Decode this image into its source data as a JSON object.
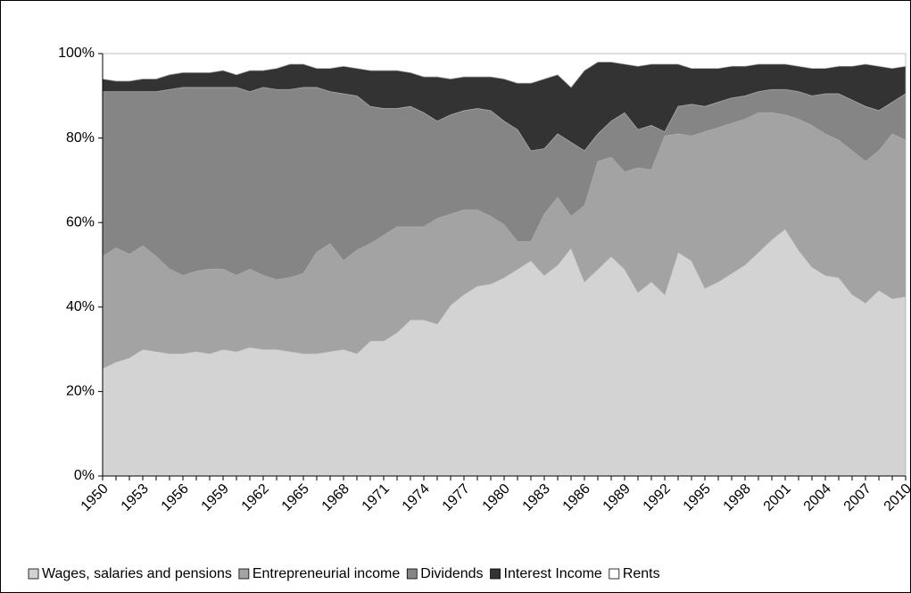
{
  "chart_data": {
    "type": "stacked_area",
    "x": [
      1950,
      1951,
      1952,
      1953,
      1954,
      1955,
      1956,
      1957,
      1958,
      1959,
      1960,
      1961,
      1962,
      1963,
      1964,
      1965,
      1966,
      1967,
      1968,
      1969,
      1970,
      1971,
      1972,
      1973,
      1974,
      1975,
      1976,
      1977,
      1978,
      1979,
      1980,
      1981,
      1982,
      1983,
      1984,
      1985,
      1986,
      1987,
      1988,
      1989,
      1990,
      1991,
      1992,
      1993,
      1994,
      1995,
      1996,
      1997,
      1998,
      1999,
      2000,
      2001,
      2002,
      2003,
      2004,
      2005,
      2006,
      2007,
      2008,
      2009,
      2010
    ],
    "xlim": [
      1950,
      2010
    ],
    "xticks": [
      1950,
      1953,
      1956,
      1959,
      1962,
      1965,
      1968,
      1971,
      1974,
      1977,
      1980,
      1983,
      1986,
      1989,
      1992,
      1995,
      1998,
      2001,
      2004,
      2007,
      2010
    ],
    "ylim": [
      0,
      100
    ],
    "yticks": [
      {
        "value": 0,
        "label": "0%"
      },
      {
        "value": 20,
        "label": "20%"
      },
      {
        "value": 40,
        "label": "40%"
      },
      {
        "value": 60,
        "label": "60%"
      },
      {
        "value": 80,
        "label": "80%"
      },
      {
        "value": 100,
        "label": "100%"
      }
    ],
    "grid": false,
    "legend": "bottom",
    "series": [
      {
        "name": "Wages, salaries and pensions",
        "color": "#d3d3d3",
        "values": [
          25.5,
          27,
          28,
          30,
          29.5,
          29,
          29,
          29.5,
          29,
          30,
          29.5,
          30.5,
          30,
          30,
          29.5,
          29,
          29,
          29.5,
          30,
          29,
          32,
          32,
          34,
          37,
          37,
          36,
          40.5,
          43,
          45,
          45.5,
          47,
          49,
          51,
          47.5,
          50,
          54,
          46,
          49,
          52,
          49,
          43.5,
          46,
          43,
          53,
          51,
          44.5,
          46,
          48,
          50,
          53,
          56,
          58.5,
          53.5,
          49.5,
          47.5,
          47,
          43,
          41,
          44,
          42,
          42.5
        ]
      },
      {
        "name": "Entrepreneurial income",
        "color": "#a3a3a3",
        "values": [
          26.5,
          27,
          24.5,
          24.5,
          22.5,
          20,
          18.5,
          19,
          20,
          19,
          18,
          18.5,
          17.5,
          16.5,
          17.5,
          19,
          24,
          25.5,
          21,
          24.5,
          23,
          25,
          25,
          22,
          22,
          25,
          21.5,
          20,
          18,
          16,
          12.5,
          6.5,
          4.5,
          14.5,
          16,
          7.5,
          18,
          25.5,
          23.5,
          23,
          29.5,
          26.5,
          37.5,
          28,
          29.5,
          37,
          36.5,
          35.5,
          34.5,
          33,
          30,
          27,
          31,
          33.5,
          33.5,
          32.5,
          34,
          33.5,
          33,
          39,
          37
        ]
      },
      {
        "name": "Dividends",
        "color": "#858585",
        "values": [
          39,
          37,
          38.5,
          36.5,
          39,
          42.5,
          44.5,
          43.5,
          43,
          43,
          44.5,
          42,
          44.5,
          45,
          44.5,
          44,
          39,
          36,
          39.5,
          36.5,
          32.5,
          30,
          28,
          28.5,
          27,
          23,
          23.5,
          23.5,
          24,
          25,
          24.5,
          26.5,
          21.5,
          15.5,
          15,
          17.5,
          13,
          6.5,
          8.5,
          14,
          9,
          10.5,
          1,
          6.5,
          7.5,
          6,
          6,
          6,
          5.5,
          5,
          5.5,
          6,
          6.5,
          7,
          9.5,
          11,
          12,
          13,
          9.5,
          7.5,
          11
        ]
      },
      {
        "name": "Interest Income",
        "color": "#333333",
        "values": [
          3,
          2.5,
          2.5,
          3,
          3,
          3.5,
          3.5,
          3.5,
          3.5,
          4,
          3,
          5,
          4,
          5,
          6,
          5.5,
          4.5,
          5.5,
          6.5,
          6.5,
          8.5,
          9,
          9,
          8,
          8.5,
          10.5,
          8.5,
          8,
          7.5,
          8,
          10,
          11,
          16,
          16.5,
          14,
          13,
          19,
          17,
          14,
          11.5,
          15,
          14.5,
          16,
          10,
          8.5,
          9,
          8,
          7.5,
          7,
          6.5,
          6,
          6,
          6,
          6.5,
          6,
          6.5,
          8,
          10,
          10.5,
          8,
          6.5
        ]
      },
      {
        "name": "Rents",
        "color": "#ffffff",
        "values": [
          6,
          6.5,
          6.5,
          6,
          6,
          5,
          4.5,
          4.5,
          4.5,
          4,
          5,
          4,
          4,
          3.5,
          2.5,
          2.5,
          3.5,
          3.5,
          3,
          3.5,
          4,
          4,
          4,
          4.5,
          5.5,
          5.5,
          6,
          5.5,
          5.5,
          5.5,
          6,
          7,
          7,
          6,
          5,
          8,
          4,
          2,
          2,
          2.5,
          3,
          2.5,
          2.5,
          2.5,
          3.5,
          3.5,
          3.5,
          3,
          3,
          2.5,
          2.5,
          2.5,
          3,
          3.5,
          3.5,
          3,
          3,
          2.5,
          3,
          3.5,
          3
        ]
      }
    ]
  }
}
